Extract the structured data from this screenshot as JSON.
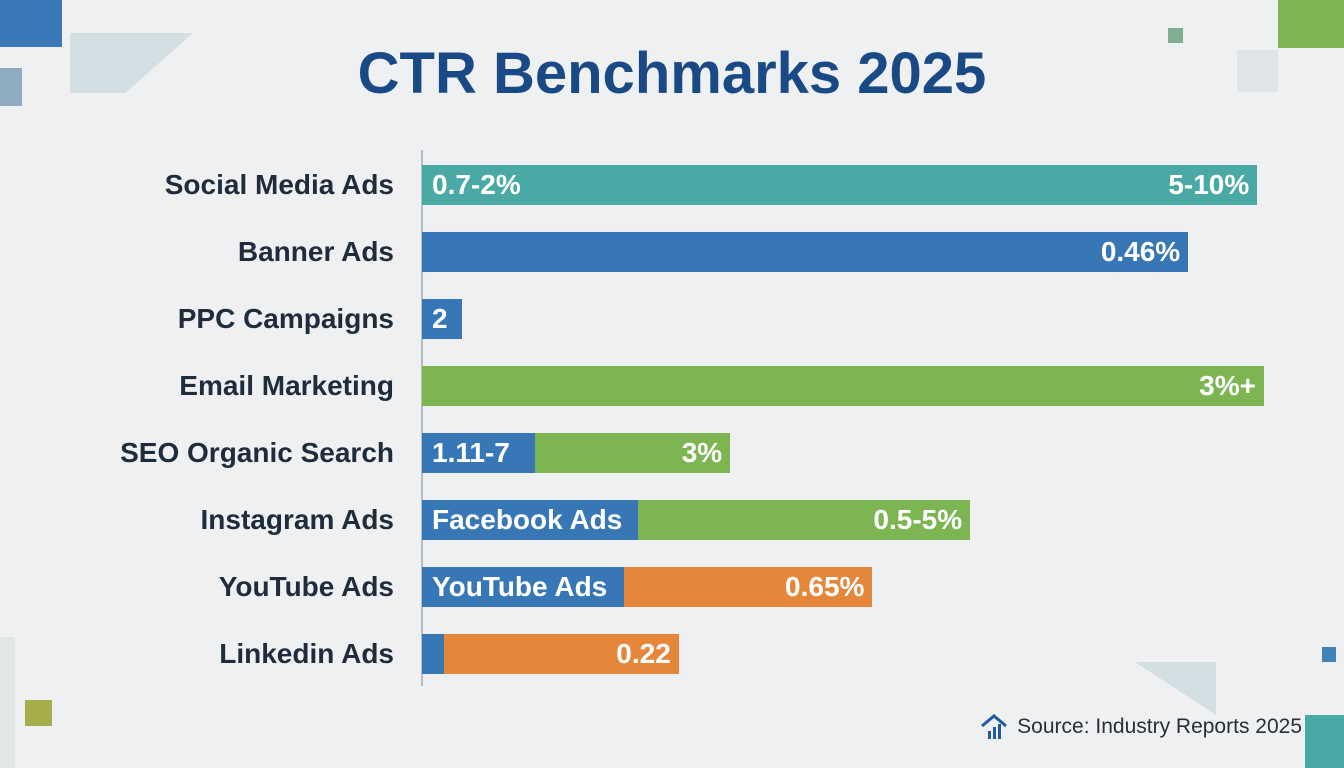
{
  "chart_data": {
    "type": "bar",
    "orientation": "horizontal",
    "stacked": true,
    "title": "CTR Benchmarks 2025",
    "xlim": [
      0,
      100
    ],
    "grid": false,
    "categories": [
      "Social Media Ads",
      "Banner Ads",
      "PPC Campaigns",
      "Email Marketing",
      "SEO Organic Search",
      "Instagram Ads",
      "YouTube Ads",
      "Linkedin Ads"
    ],
    "rows": [
      {
        "category": "Social Media Ads",
        "segments": [
          {
            "value": 99.2,
            "color": "#4aa9a4",
            "label": "0.7-2%",
            "end_label": "5-10%"
          }
        ]
      },
      {
        "category": "Banner Ads",
        "segments": [
          {
            "value": 91,
            "color": "#3777b5",
            "end_label": "0.46%"
          }
        ]
      },
      {
        "category": "PPC Campaigns",
        "segments": [
          {
            "value": 4.8,
            "color": "#3777b5",
            "label": "2"
          }
        ]
      },
      {
        "category": "Email Marketing",
        "segments": [
          {
            "value": 100,
            "color": "#7db553",
            "end_label": "3%+"
          }
        ]
      },
      {
        "category": "SEO Organic Search",
        "segments": [
          {
            "value": 13.4,
            "color": "#3777b5",
            "label": "1.11-7"
          },
          {
            "value": 23.2,
            "color": "#7db553",
            "end_label": "3%"
          }
        ]
      },
      {
        "category": "Instagram Ads",
        "segments": [
          {
            "value": 25.7,
            "color": "#3777b5",
            "label": "Facebook Ads"
          },
          {
            "value": 39.4,
            "color": "#7db553",
            "end_label": "0.5-5%"
          }
        ]
      },
      {
        "category": "YouTube Ads",
        "segments": [
          {
            "value": 24,
            "color": "#3777b5",
            "label": "YouTube Ads"
          },
          {
            "value": 29.5,
            "color": "#e5873b",
            "end_label": "0.65%"
          }
        ]
      },
      {
        "category": "Linkedin Ads",
        "segments": [
          {
            "value": 2.6,
            "color": "#3777b5"
          },
          {
            "value": 27.9,
            "color": "#e5873b",
            "end_label": "0.22"
          }
        ]
      }
    ]
  },
  "footer": {
    "source": "Source: Industry Reports 2025",
    "icon": "house-chart-icon"
  },
  "colors": {
    "title": "#1a4a86",
    "teal": "#4aa9a4",
    "blue": "#3777b5",
    "green": "#7db553",
    "orange": "#e5873b"
  }
}
